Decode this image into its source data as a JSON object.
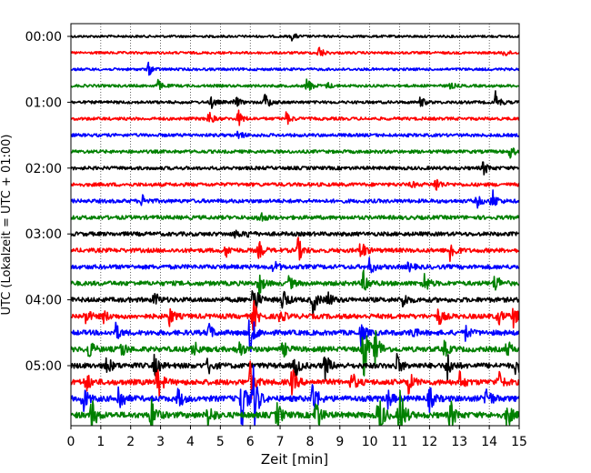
{
  "chart_data": {
    "type": "line",
    "title": "",
    "xlabel": "Zeit  [min]",
    "ylabel": "UTC (Lokalzeit = UTC + 01:00)",
    "xlim": [
      0,
      15
    ],
    "x_ticks": [
      "0",
      "1",
      "2",
      "3",
      "4",
      "5",
      "6",
      "7",
      "8",
      "9",
      "10",
      "11",
      "12",
      "13",
      "14",
      "15"
    ],
    "y_ticks": [
      "00:00",
      "01:00",
      "02:00",
      "03:00",
      "04:00",
      "05:00"
    ],
    "grid": "vertical dotted",
    "trace_interval_minutes": 15,
    "trace_colors": [
      "#000000",
      "#ff0000",
      "#0000ff",
      "#008000"
    ],
    "traces": [
      {
        "start": "00:00",
        "color": "#000000",
        "events": [
          [
            7.4,
            0.6
          ]
        ]
      },
      {
        "start": "00:15",
        "color": "#ff0000",
        "events": [
          [
            8.3,
            1.0
          ],
          [
            14.5,
            0.6
          ]
        ]
      },
      {
        "start": "00:30",
        "color": "#0000ff",
        "events": [
          [
            2.6,
            0.9
          ]
        ]
      },
      {
        "start": "00:45",
        "color": "#008000",
        "events": [
          [
            2.9,
            0.8
          ],
          [
            7.9,
            1.2
          ],
          [
            8.6,
            0.4
          ],
          [
            12.7,
            0.4
          ]
        ]
      },
      {
        "start": "01:00",
        "color": "#000000",
        "events": [
          [
            4.7,
            0.8
          ],
          [
            5.5,
            0.8
          ],
          [
            6.5,
            1.3
          ],
          [
            11.7,
            0.7
          ],
          [
            14.2,
            1.4
          ]
        ]
      },
      {
        "start": "01:15",
        "color": "#ff0000",
        "events": [
          [
            4.6,
            1.0
          ],
          [
            5.6,
            1.0
          ],
          [
            7.2,
            0.9
          ]
        ]
      },
      {
        "start": "01:30",
        "color": "#0000ff",
        "events": [
          [
            5.6,
            0.6
          ]
        ]
      },
      {
        "start": "01:45",
        "color": "#008000",
        "events": [
          [
            14.7,
            0.7
          ]
        ]
      },
      {
        "start": "02:00",
        "color": "#000000",
        "events": [
          [
            13.8,
            0.8
          ]
        ]
      },
      {
        "start": "02:15",
        "color": "#ff0000",
        "events": [
          [
            12.2,
            0.9
          ],
          [
            11.4,
            0.3
          ]
        ]
      },
      {
        "start": "02:30",
        "color": "#0000ff",
        "events": [
          [
            2.4,
            0.7
          ],
          [
            13.6,
            0.6
          ],
          [
            14.1,
            1.2
          ]
        ]
      },
      {
        "start": "02:45",
        "color": "#008000",
        "events": [
          [
            6.3,
            0.8
          ]
        ]
      },
      {
        "start": "03:00",
        "color": "#000000",
        "events": [
          [
            5.5,
            0.4
          ],
          [
            5.9,
            0.3
          ]
        ]
      },
      {
        "start": "03:15",
        "color": "#ff0000",
        "events": [
          [
            5.2,
            0.6
          ],
          [
            6.3,
            0.8
          ],
          [
            7.6,
            1.2
          ],
          [
            9.7,
            1.1
          ],
          [
            12.7,
            1.3
          ]
        ]
      },
      {
        "start": "03:30",
        "color": "#0000ff",
        "events": [
          [
            6.8,
            0.6
          ],
          [
            10.0,
            0.8
          ],
          [
            11.3,
            0.4
          ]
        ]
      },
      {
        "start": "03:45",
        "color": "#008000",
        "events": [
          [
            6.3,
            1.0
          ],
          [
            7.3,
            0.6
          ],
          [
            9.8,
            1.2
          ],
          [
            11.8,
            1.2
          ],
          [
            14.2,
            1.0
          ]
        ]
      },
      {
        "start": "04:00",
        "color": "#000000",
        "events": [
          [
            2.8,
            0.7
          ],
          [
            6.1,
            1.8
          ],
          [
            7.1,
            1.1
          ],
          [
            8.1,
            1.2
          ],
          [
            8.6,
            0.7
          ],
          [
            11.1,
            0.8
          ]
        ]
      },
      {
        "start": "04:15",
        "color": "#ff0000",
        "events": [
          [
            0.5,
            0.7
          ],
          [
            1.1,
            0.5
          ],
          [
            3.3,
            0.8
          ],
          [
            6.1,
            1.4
          ],
          [
            7.0,
            0.6
          ],
          [
            12.3,
            0.8
          ],
          [
            14.3,
            0.7
          ],
          [
            14.8,
            0.9
          ]
        ]
      },
      {
        "start": "04:30",
        "color": "#0000ff",
        "events": [
          [
            1.5,
            0.7
          ],
          [
            4.6,
            0.8
          ],
          [
            6.0,
            2.0
          ],
          [
            9.7,
            1.0
          ],
          [
            11.4,
            0.5
          ],
          [
            13.2,
            0.6
          ]
        ]
      },
      {
        "start": "04:45",
        "color": "#008000",
        "events": [
          [
            0.6,
            0.8
          ],
          [
            1.7,
            0.7
          ],
          [
            4.1,
            0.7
          ],
          [
            5.6,
            0.9
          ],
          [
            7.1,
            0.6
          ],
          [
            9.8,
            2.4
          ],
          [
            10.2,
            1.6
          ],
          [
            12.5,
            0.6
          ],
          [
            14.6,
            0.7
          ]
        ]
      },
      {
        "start": "05:00",
        "color": "#000000",
        "events": [
          [
            1.2,
            0.8
          ],
          [
            2.8,
            0.9
          ],
          [
            4.6,
            0.7
          ],
          [
            7.5,
            1.0
          ],
          [
            8.5,
            1.1
          ],
          [
            10.9,
            0.9
          ],
          [
            12.6,
            1.1
          ],
          [
            14.9,
            0.8
          ]
        ]
      },
      {
        "start": "05:15",
        "color": "#ff0000",
        "events": [
          [
            0.5,
            0.8
          ],
          [
            2.9,
            1.4
          ],
          [
            6.0,
            1.6
          ],
          [
            7.4,
            1.0
          ],
          [
            9.4,
            0.8
          ],
          [
            11.3,
            0.9
          ],
          [
            13.0,
            0.8
          ],
          [
            14.3,
            0.9
          ]
        ]
      },
      {
        "start": "05:30",
        "color": "#0000ff",
        "events": [
          [
            0.4,
            1.1
          ],
          [
            1.6,
            1.3
          ],
          [
            3.6,
            0.8
          ],
          [
            5.7,
            2.6
          ],
          [
            6.1,
            2.8
          ],
          [
            8.1,
            1.6
          ],
          [
            10.6,
            0.8
          ],
          [
            12.0,
            0.9
          ],
          [
            13.9,
            1.1
          ]
        ]
      },
      {
        "start": "05:45",
        "color": "#008000",
        "events": [
          [
            0.7,
            1.3
          ],
          [
            2.7,
            1.5
          ],
          [
            4.6,
            1.0
          ],
          [
            6.9,
            1.0
          ],
          [
            8.2,
            1.5
          ],
          [
            10.3,
            2.0
          ],
          [
            11.0,
            2.6
          ],
          [
            12.7,
            1.2
          ],
          [
            14.6,
            1.0
          ]
        ]
      }
    ]
  }
}
